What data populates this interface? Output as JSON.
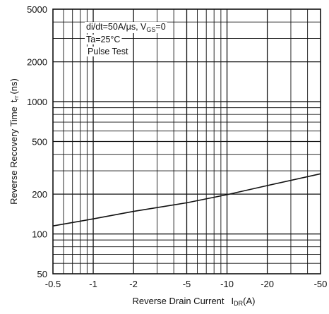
{
  "chart_data": {
    "type": "line",
    "title": "",
    "xlabel": {
      "main": "Reverse Drain Current",
      "symbol": "I",
      "subscript": "DR",
      "unit": "(A)"
    },
    "ylabel": {
      "main": "Reverse Recovery Time",
      "symbol": "t",
      "subscript": "rr",
      "unit": "(ns)"
    },
    "x_scale": "log",
    "y_scale": "log",
    "x_direction": "negative",
    "xlim": [
      -0.5,
      -50
    ],
    "ylim": [
      50,
      5000
    ],
    "x_ticks": [
      "-0.5",
      "-1",
      "-2",
      "-5",
      "-10",
      "-20",
      "-50"
    ],
    "x_tick_values": [
      -0.5,
      -1,
      -2,
      -5,
      -10,
      -20,
      -50
    ],
    "y_ticks": [
      "50",
      "100",
      "200",
      "500",
      "1000",
      "2000",
      "5000"
    ],
    "y_tick_values": [
      50,
      100,
      200,
      500,
      1000,
      2000,
      5000
    ],
    "grid": true,
    "annotations": {
      "line1_main": "di/dt=50A/μs, V",
      "line1_sub": "GS",
      "line1_end": "=0",
      "line2": "Ta=25°C",
      "line3": "Pulse Test"
    },
    "series": [
      {
        "x": [
          -0.5,
          -1,
          -2,
          -5,
          -10,
          -20,
          -50
        ],
        "y": [
          115,
          130,
          148,
          172,
          198,
          232,
          285
        ]
      }
    ]
  }
}
